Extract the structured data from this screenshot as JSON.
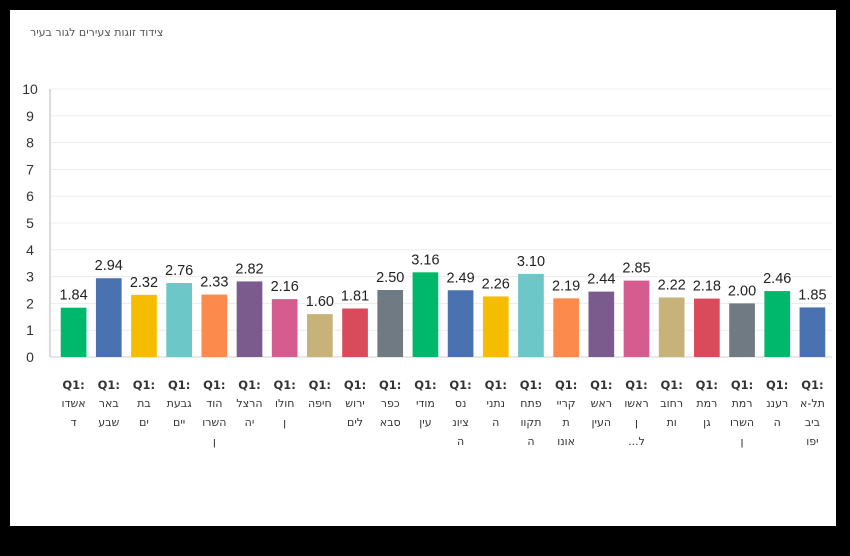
{
  "chart_data": {
    "type": "bar",
    "title": "צידוד זוגות צעירים לגור בעיר",
    "xlabel": "",
    "ylabel": "",
    "ylim": [
      0,
      10
    ],
    "yticks": [
      "0",
      "1",
      "2",
      "3",
      "4",
      "5",
      "6",
      "7",
      "8",
      "9",
      "10"
    ],
    "grid": true,
    "legend": "none",
    "categories": [
      {
        "prefix": "Q1:",
        "lines": [
          "אשדו",
          "ד"
        ]
      },
      {
        "prefix": "Q1:",
        "lines": [
          "באר",
          "שבע"
        ]
      },
      {
        "prefix": "Q1:",
        "lines": [
          "בת",
          "ים"
        ]
      },
      {
        "prefix": "Q1:",
        "lines": [
          "גבעת",
          "יים"
        ]
      },
      {
        "prefix": "Q1:",
        "lines": [
          "הוד",
          "השרו",
          "ן"
        ]
      },
      {
        "prefix": "Q1:",
        "lines": [
          "הרצל",
          "יה"
        ]
      },
      {
        "prefix": "Q1:",
        "lines": [
          "חולו",
          "ן"
        ]
      },
      {
        "prefix": "Q1:",
        "lines": [
          "חיפה"
        ]
      },
      {
        "prefix": "Q1:",
        "lines": [
          "ירוש",
          "לים"
        ]
      },
      {
        "prefix": "Q1:",
        "lines": [
          "כפר",
          "סבא"
        ]
      },
      {
        "prefix": "Q1:",
        "lines": [
          "מודי",
          "עין"
        ]
      },
      {
        "prefix": "Q1:",
        "lines": [
          "נס",
          "ציונ",
          "ה"
        ]
      },
      {
        "prefix": "Q1:",
        "lines": [
          "נתני",
          "ה"
        ]
      },
      {
        "prefix": "Q1:",
        "lines": [
          "פתח",
          "תקוו",
          "ה"
        ]
      },
      {
        "prefix": "Q1:",
        "lines": [
          "קריי",
          "ת",
          "אונו"
        ]
      },
      {
        "prefix": "Q1:",
        "lines": [
          "ראש",
          "העין"
        ]
      },
      {
        "prefix": "Q1:",
        "lines": [
          "ראשו",
          "ן",
          "ל..."
        ]
      },
      {
        "prefix": "Q1:",
        "lines": [
          "רחוב",
          "ות"
        ]
      },
      {
        "prefix": "Q1:",
        "lines": [
          "רמת",
          "גן"
        ]
      },
      {
        "prefix": "Q1:",
        "lines": [
          "רמת",
          "השרו",
          "ן"
        ]
      },
      {
        "prefix": "Q1:",
        "lines": [
          "רעננ",
          "ה"
        ]
      },
      {
        "prefix": "Q1:",
        "lines": [
          "תל-א",
          "ביב",
          "יפו"
        ]
      }
    ],
    "values": [
      1.84,
      2.94,
      2.32,
      2.76,
      2.33,
      2.82,
      2.16,
      1.6,
      1.81,
      2.5,
      3.16,
      2.49,
      2.26,
      3.1,
      2.19,
      2.44,
      2.85,
      2.22,
      2.18,
      2.0,
      2.46,
      1.85
    ],
    "data_labels": [
      "1.84",
      "2.94",
      "2.32",
      "2.76",
      "2.33",
      "2.82",
      "2.16",
      "1.60",
      "1.81",
      "2.50",
      "3.16",
      "2.49",
      "2.26",
      "3.10",
      "2.19",
      "2.44",
      "2.85",
      "2.22",
      "2.18",
      "2.00",
      "2.46",
      "1.85"
    ],
    "colors": [
      "#00b86b",
      "#4a72b0",
      "#f5bc00",
      "#6cc7c9",
      "#fc8a4c",
      "#7b5a8e",
      "#d65b8e",
      "#c7b27a",
      "#d94a5a",
      "#6f7a82",
      "#00b86b",
      "#4a72b0",
      "#f5bc00",
      "#6cc7c9",
      "#fc8a4c",
      "#7b5a8e",
      "#d65b8e",
      "#c7b27a",
      "#d94a5a",
      "#6f7a82",
      "#00b86b",
      "#4a72b0"
    ]
  }
}
